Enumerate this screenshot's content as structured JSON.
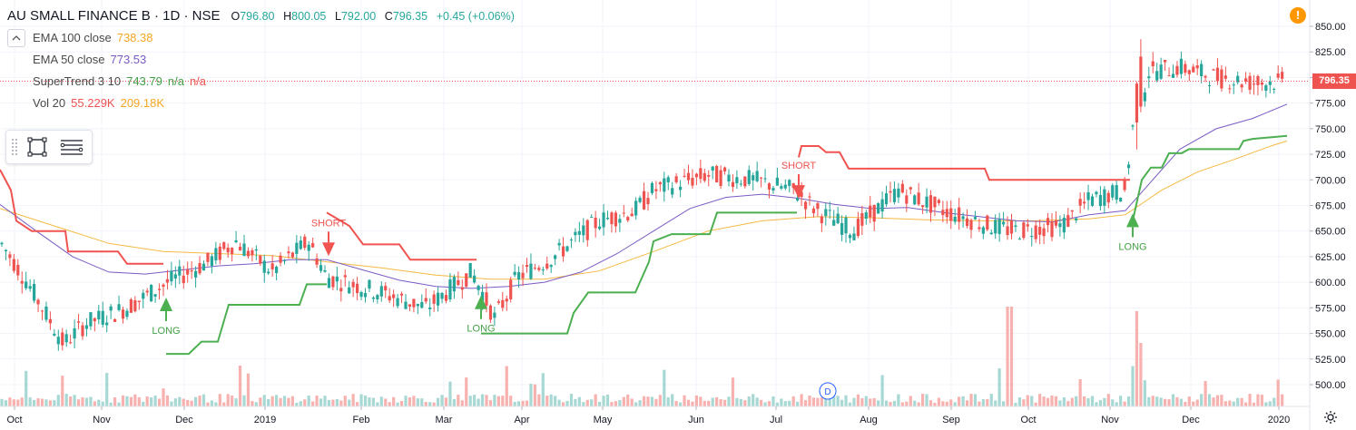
{
  "header": {
    "symbol": "AU SMALL FINANCE B · 1D · NSE",
    "open_label": "O",
    "open": "796.80",
    "high_label": "H",
    "high": "800.05",
    "low_label": "L",
    "low": "792.00",
    "close_label": "C",
    "close": "796.35",
    "change": "+0.45 (+0.06%)"
  },
  "indicators": {
    "ema100": {
      "name": "EMA 100 close",
      "value": "738.38"
    },
    "ema50": {
      "name": "EMA 50 close",
      "value": "773.53"
    },
    "supertrend": {
      "name": "SuperTrend 3 10",
      "value": "743.79",
      "extra1": "n/a",
      "extra2": "n/a"
    },
    "vol": {
      "name": "Vol 20",
      "value1": "55.229K",
      "value2": "209.18K"
    }
  },
  "toolbar": {
    "collapse_icon": "chevron-up-icon",
    "rect_icon": "rectangle-icon",
    "lines_icon": "horizontal-lines-icon"
  },
  "price_tag": "796.35",
  "colors": {
    "up": "#26a69a",
    "down": "#ef5350",
    "ema100": "#f5b942",
    "ema50": "#7a5bc4",
    "supertrend_long": "#4caf50",
    "supertrend_short": "#f05350",
    "alert": "#ff9800"
  },
  "chart_data": {
    "type": "candlestick",
    "price_axis": {
      "ticks": [
        500,
        525,
        550,
        575,
        600,
        625,
        650,
        675,
        700,
        725,
        750,
        775,
        800,
        825,
        850
      ],
      "min": 492,
      "max": 862
    },
    "time_axis": {
      "labels": [
        "Oct",
        "Nov",
        "Dec",
        "2019",
        "Feb",
        "Mar",
        "Apr",
        "May",
        "Jun",
        "Jul",
        "Aug",
        "Sep",
        "Oct",
        "Nov",
        "Dec",
        "2020"
      ]
    },
    "signals": [
      {
        "type": "long",
        "label": "LONG",
        "month": "Nov",
        "price": 578
      },
      {
        "type": "short",
        "label": "SHORT",
        "month": "Jan",
        "price": 630
      },
      {
        "type": "long",
        "label": "LONG",
        "month": "Mar",
        "price": 580
      },
      {
        "type": "short",
        "label": "SHORT",
        "month": "Jul",
        "price": 686
      },
      {
        "type": "long",
        "label": "LONG",
        "month": "Nov",
        "price": 660
      }
    ],
    "current_price": 796.35,
    "event_marker": "D"
  }
}
